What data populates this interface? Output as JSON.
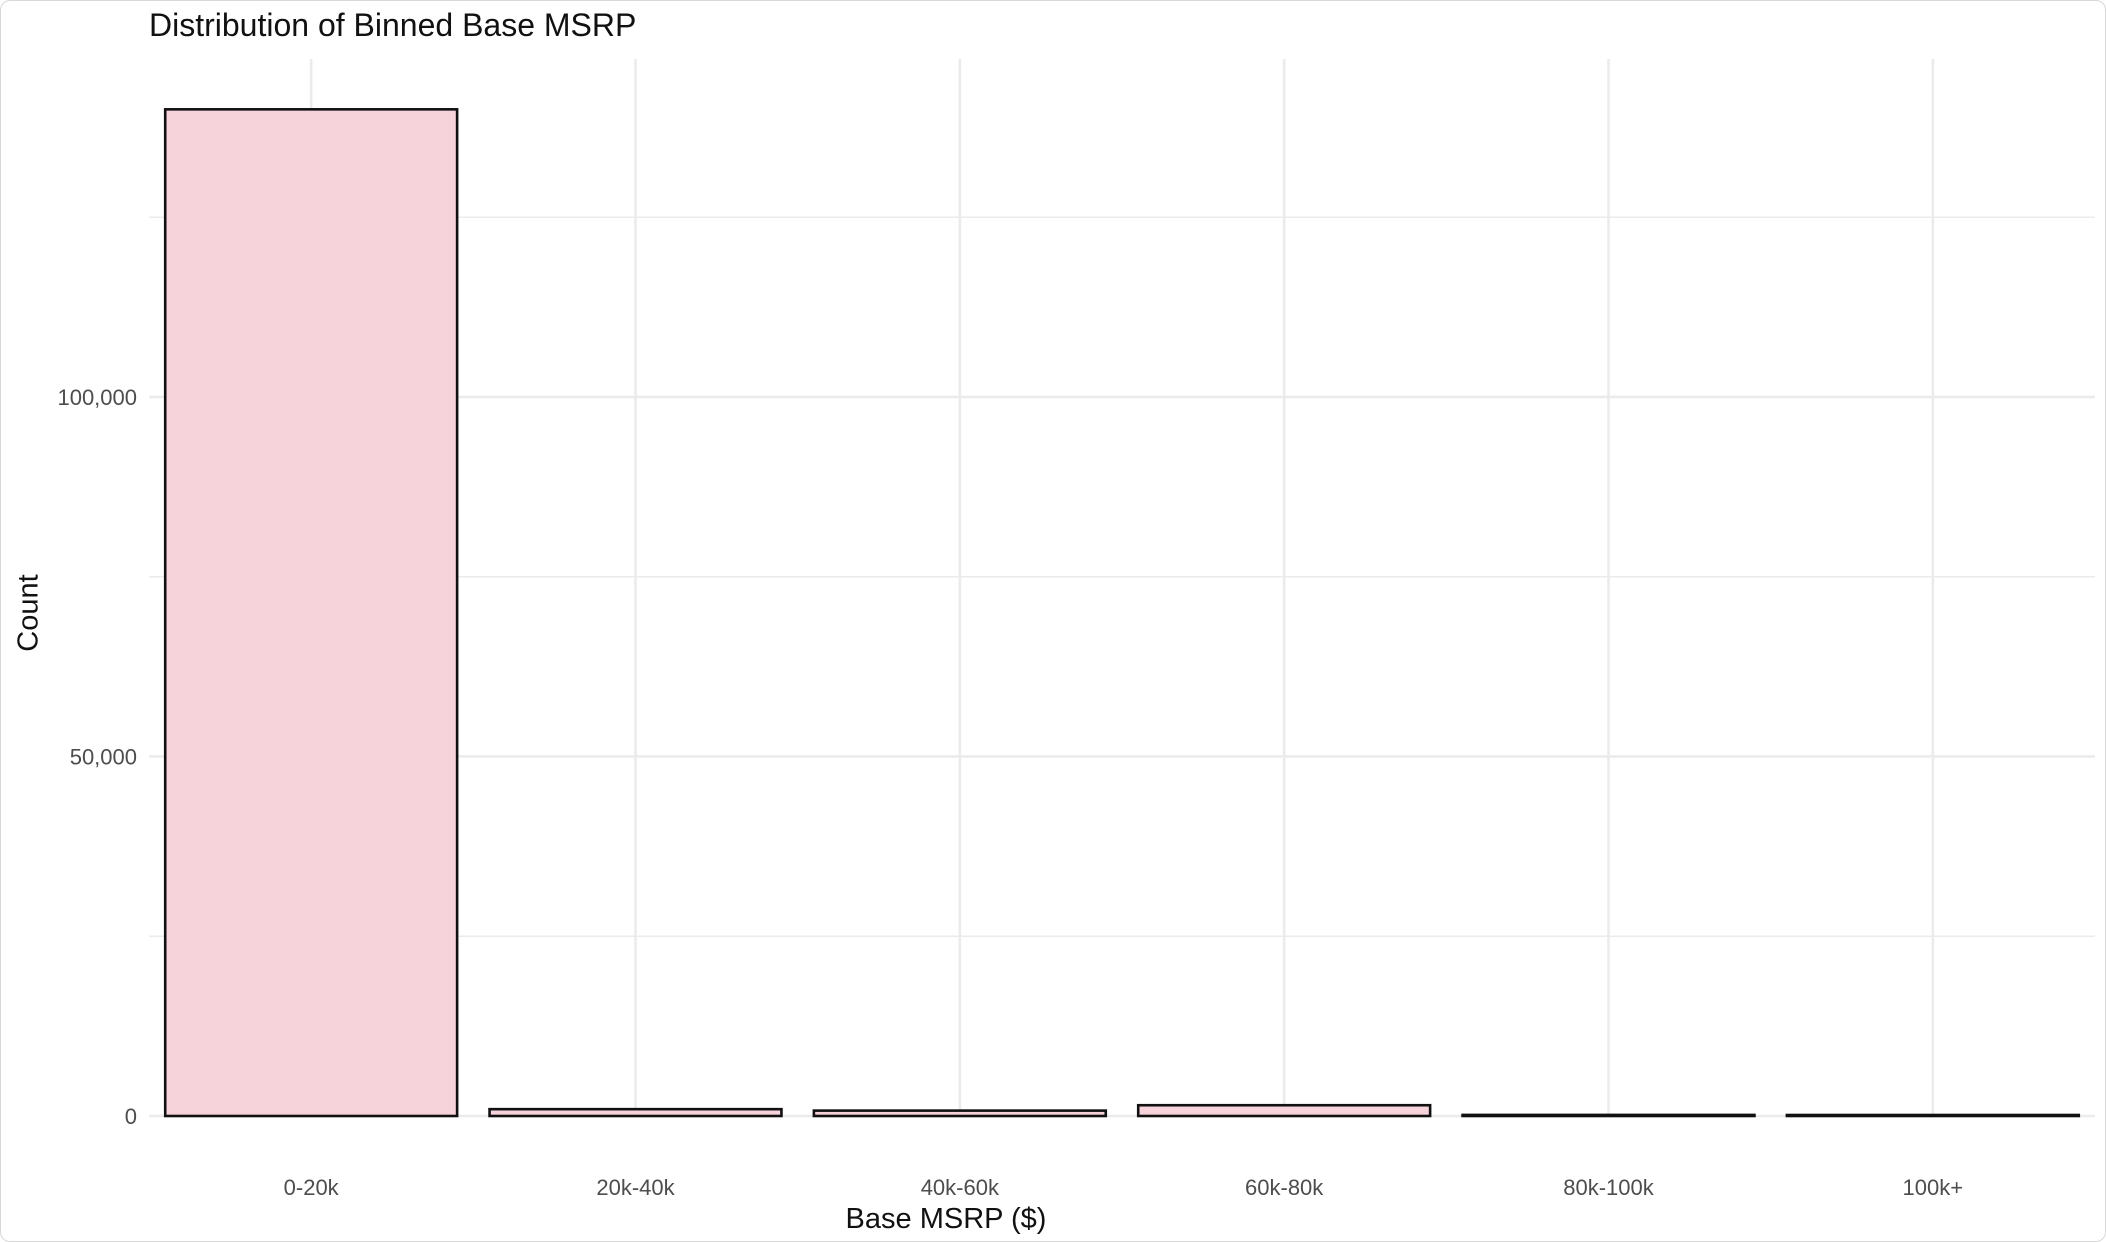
{
  "chart_data": {
    "type": "bar",
    "title": "Distribution of Binned Base MSRP",
    "xlabel": "Base MSRP ($)",
    "ylabel": "Count",
    "categories": [
      "0-20k",
      "20k-40k",
      "40k-60k",
      "60k-80k",
      "80k-100k",
      "100k+"
    ],
    "values": [
      140000,
      950,
      750,
      1500,
      150,
      100
    ],
    "ylim": [
      0,
      147000
    ],
    "yticks": [
      0,
      50000,
      100000
    ],
    "ytick_labels": [
      "0",
      "50,000",
      "100,000"
    ],
    "grid": true,
    "bar_fill": "#f6d3da",
    "bar_edge": "#111111",
    "grid_color": "#ebebeb",
    "tick_text_color": "#4d4d4d"
  }
}
